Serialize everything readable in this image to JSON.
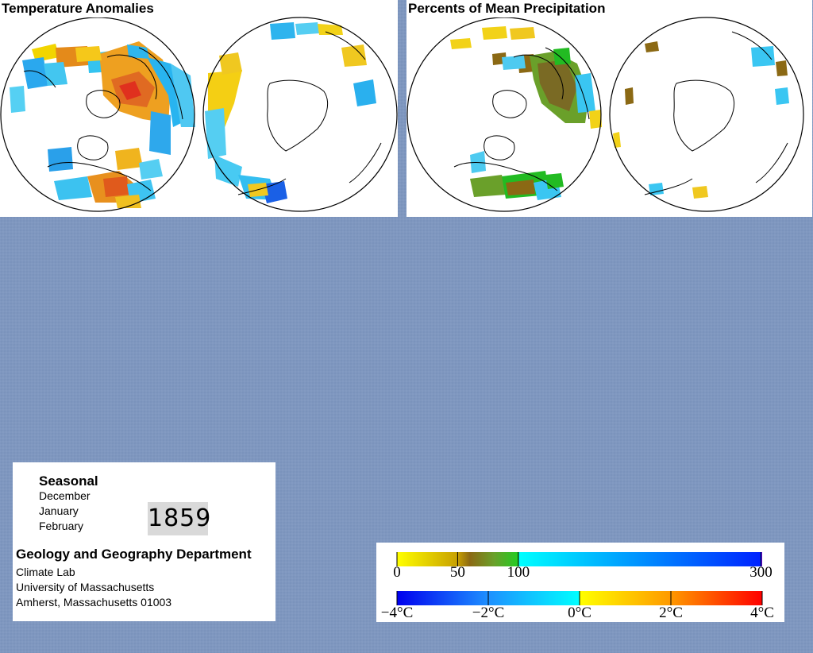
{
  "maps": {
    "temperature": {
      "title": "Temperature Anomalies"
    },
    "precipitation": {
      "title": "Percents of Mean Precipitation"
    }
  },
  "info": {
    "season": "Seasonal",
    "months": [
      "December",
      "January",
      "February"
    ],
    "year": "1859",
    "department": "Geology and Geography Department",
    "lab": "Climate Lab",
    "university": "University of Massachusetts",
    "address": "Amherst, Massachusetts 01003"
  },
  "legend": {
    "precipitation": {
      "labels": [
        "0",
        "50",
        "100",
        "300"
      ],
      "stops": [
        {
          "value": 0,
          "color": "#ffff00"
        },
        {
          "value": 50,
          "color": "#c8a000"
        },
        {
          "value": 60,
          "color": "#8b6914"
        },
        {
          "value": 80,
          "color": "#6aa02a"
        },
        {
          "value": 100,
          "color": "#22cc22"
        },
        {
          "value": 101,
          "color": "#00ffff"
        },
        {
          "value": 300,
          "color": "#0022ff"
        },
        {
          "value": 301,
          "color": "#9900ff"
        }
      ]
    },
    "temperature": {
      "labels": [
        "−4°C",
        "−2°C",
        "0°C",
        "2°C",
        "4°C"
      ],
      "stops": [
        {
          "value": -4,
          "color": "#0000ee"
        },
        {
          "value": -2,
          "color": "#1e90ff"
        },
        {
          "value": 0,
          "color": "#00ffff"
        },
        {
          "value": 0.01,
          "color": "#ffff00"
        },
        {
          "value": 2,
          "color": "#ff9900"
        },
        {
          "value": 4,
          "color": "#ff0000"
        }
      ]
    }
  },
  "colors": {
    "background": "#7f97bf",
    "panel": "#ffffff",
    "year_box": "#d9d9d9"
  }
}
